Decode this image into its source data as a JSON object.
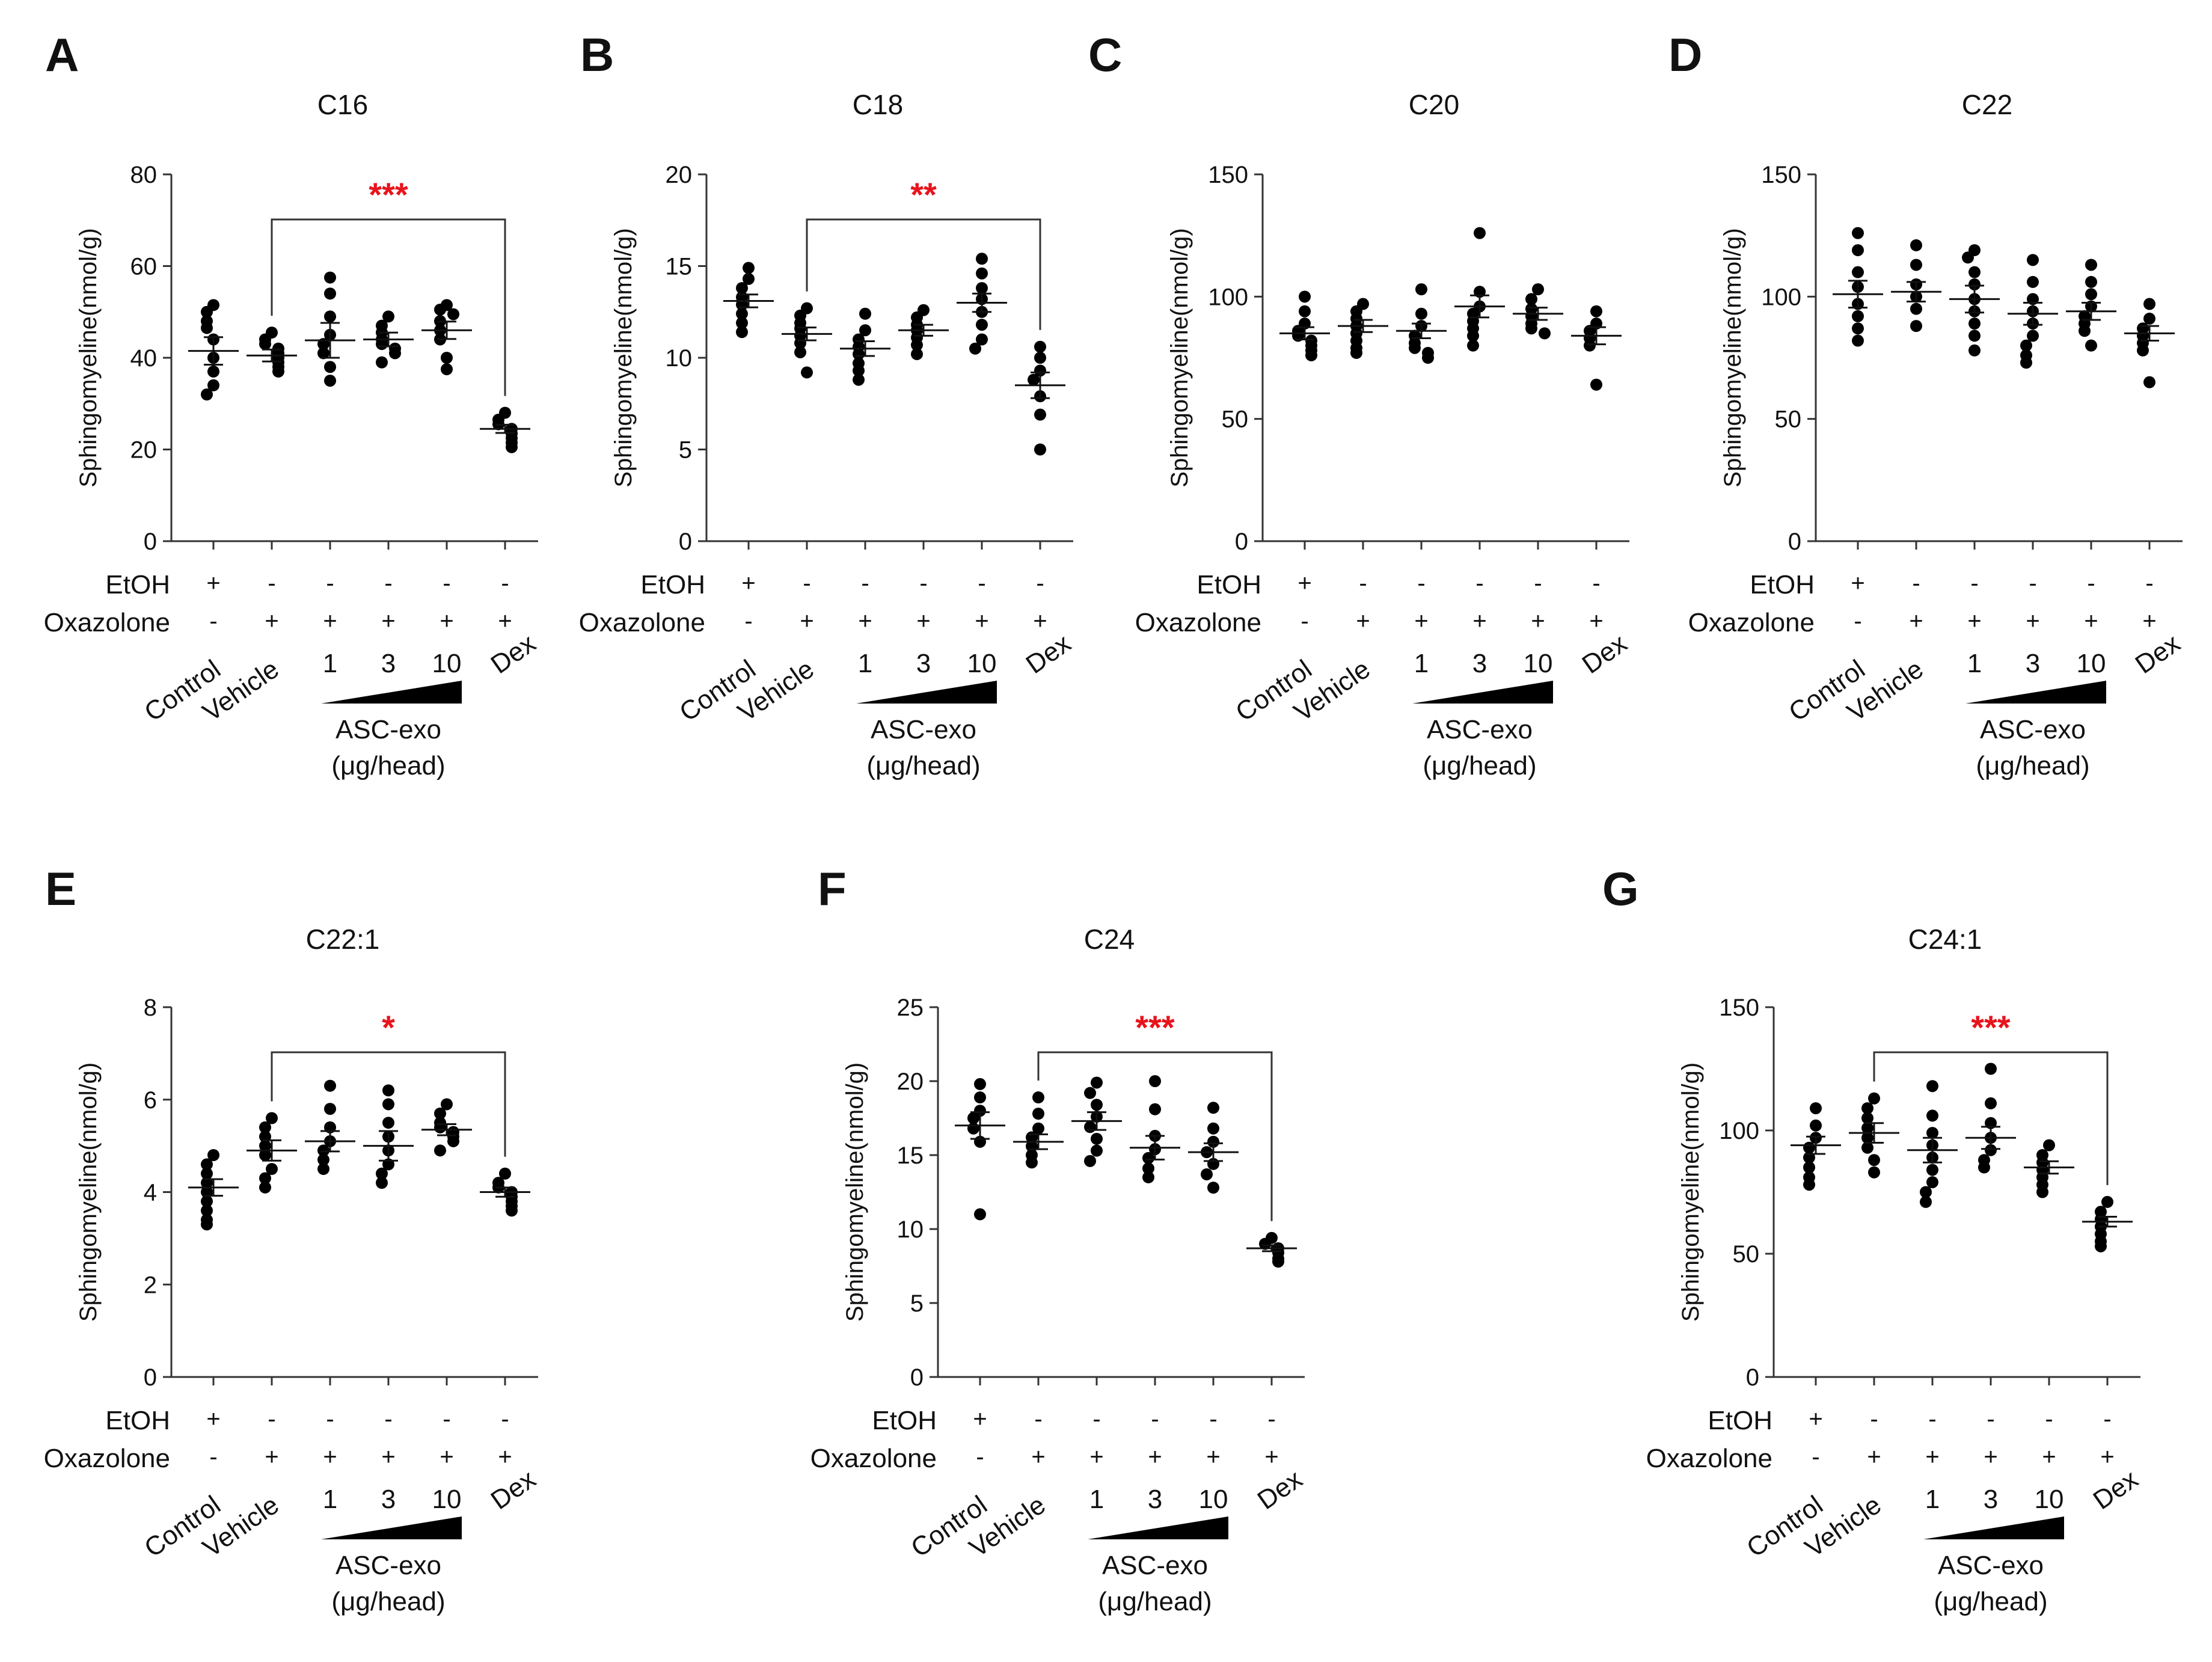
{
  "shared": {
    "ylabel": "Sphingomyeline(nmol/g)",
    "row_labels": [
      "EtOH",
      "Oxazolone"
    ],
    "etoh_signs": [
      "+",
      "-",
      "-",
      "-",
      "-",
      "-"
    ],
    "oxa_signs": [
      "-",
      "+",
      "+",
      "+",
      "+",
      "+"
    ],
    "groups": [
      "Control",
      "Vehicle",
      "1",
      "3",
      "10",
      "Dex"
    ],
    "exo_label_line1": "ASC-exo",
    "exo_label_line2": "(μg/head)"
  },
  "chart_data": [
    {
      "type": "scatter",
      "panel": "A",
      "title": "C16",
      "ylim": [
        0,
        80
      ],
      "yticks": [
        0,
        20,
        40,
        60,
        80
      ],
      "categories": [
        "Control",
        "Vehicle",
        "1",
        "3",
        "10",
        "Dex"
      ],
      "means": [
        41.5,
        40.5,
        43.8,
        44.0,
        46.0,
        24.5
      ],
      "sems": [
        3.0,
        1.3,
        3.8,
        1.5,
        1.9,
        0.9
      ],
      "points": [
        [
          51.5,
          50,
          48,
          46.5,
          44,
          40,
          37,
          34,
          32
        ],
        [
          45.5,
          44,
          43,
          42,
          41,
          40,
          39,
          38,
          37
        ],
        [
          57.5,
          54,
          49,
          45,
          43,
          41,
          38,
          35
        ],
        [
          49,
          47,
          45.5,
          44,
          43,
          42,
          41,
          39
        ],
        [
          51.5,
          50.5,
          49.5,
          48,
          46,
          44,
          40,
          37.5
        ],
        [
          28,
          26.5,
          25.5,
          24.5,
          23.5,
          22.5,
          21.5,
          20.5
        ]
      ],
      "significance": "***",
      "bracket": [
        "Vehicle",
        "Dex"
      ]
    },
    {
      "type": "scatter",
      "panel": "B",
      "title": "C18",
      "ylim": [
        0,
        20
      ],
      "yticks": [
        0,
        5,
        10,
        15,
        20
      ],
      "categories": [
        "Control",
        "Vehicle",
        "1",
        "3",
        "10",
        "Dex"
      ],
      "means": [
        13.1,
        11.3,
        10.5,
        11.5,
        13.0,
        8.5
      ],
      "sems": [
        0.35,
        0.35,
        0.4,
        0.3,
        0.5,
        0.7
      ],
      "points": [
        [
          14.9,
          14.3,
          13.8,
          13.3,
          12.9,
          12.4,
          11.9,
          11.4
        ],
        [
          12.7,
          12.3,
          11.9,
          11.6,
          11.2,
          10.8,
          10.3,
          9.2
        ],
        [
          12.4,
          11.5,
          11.0,
          10.6,
          10.2,
          9.7,
          9.3,
          8.8
        ],
        [
          12.6,
          12.2,
          11.8,
          11.5,
          11.1,
          10.7,
          10.2
        ],
        [
          15.4,
          14.6,
          13.8,
          13.2,
          12.5,
          11.8,
          11.0,
          10.5
        ],
        [
          10.6,
          10.0,
          9.3,
          8.8,
          7.9,
          6.9,
          5.0
        ]
      ],
      "significance": "**",
      "bracket": [
        "Vehicle",
        "Dex"
      ]
    },
    {
      "type": "scatter",
      "panel": "C",
      "title": "C20",
      "ylim": [
        0,
        150
      ],
      "yticks": [
        0,
        50,
        100,
        150
      ],
      "categories": [
        "Control",
        "Vehicle",
        "1",
        "3",
        "10",
        "Dex"
      ],
      "means": [
        85,
        88,
        86,
        96,
        93,
        84
      ],
      "sems": [
        2.5,
        2.5,
        3.0,
        4.5,
        2.5,
        3.5
      ],
      "points": [
        [
          100,
          94,
          89,
          86,
          84,
          82,
          80,
          78,
          76
        ],
        [
          97,
          94,
          91,
          88,
          85,
          82,
          79,
          77
        ],
        [
          103,
          93,
          88,
          84,
          81,
          79,
          77,
          75
        ],
        [
          126,
          102,
          96,
          93,
          90,
          87,
          84,
          80
        ],
        [
          103,
          99,
          95,
          92,
          89,
          87,
          85
        ],
        [
          94,
          89,
          86,
          83,
          80,
          64
        ]
      ],
      "significance": "",
      "bracket": []
    },
    {
      "type": "scatter",
      "panel": "D",
      "title": "C22",
      "ylim": [
        0,
        150
      ],
      "yticks": [
        0,
        50,
        100,
        150
      ],
      "categories": [
        "Control",
        "Vehicle",
        "1",
        "3",
        "10",
        "Dex"
      ],
      "means": [
        101,
        102,
        99,
        93,
        94,
        85
      ],
      "sems": [
        5.5,
        4.0,
        5.5,
        4.5,
        3.5,
        3.0
      ],
      "points": [
        [
          126,
          119,
          110,
          104,
          97,
          92,
          87,
          82
        ],
        [
          121,
          113,
          105,
          100,
          95,
          88
        ],
        [
          119,
          116,
          110,
          105,
          99,
          94,
          89,
          84,
          78
        ],
        [
          115,
          106,
          99,
          94,
          89,
          84,
          80,
          76,
          73
        ],
        [
          113,
          106,
          101,
          96,
          92,
          89,
          86,
          80
        ],
        [
          97,
          91,
          87,
          84,
          81,
          78,
          65
        ]
      ],
      "significance": "",
      "bracket": []
    },
    {
      "type": "scatter",
      "panel": "E",
      "title": "C22:1",
      "ylim": [
        0,
        8
      ],
      "yticks": [
        0,
        2,
        4,
        6,
        8
      ],
      "categories": [
        "Control",
        "Vehicle",
        "1",
        "3",
        "10",
        "Dex"
      ],
      "means": [
        4.1,
        4.9,
        5.1,
        5.0,
        5.35,
        4.0
      ],
      "sems": [
        0.18,
        0.22,
        0.22,
        0.32,
        0.12,
        0.1
      ],
      "points": [
        [
          4.8,
          4.6,
          4.4,
          4.2,
          4.0,
          3.8,
          3.6,
          3.4,
          3.3
        ],
        [
          5.6,
          5.4,
          5.2,
          5.0,
          4.8,
          4.5,
          4.3,
          4.1
        ],
        [
          6.3,
          5.8,
          5.4,
          5.1,
          4.9,
          4.7,
          4.5
        ],
        [
          6.2,
          5.9,
          5.5,
          5.2,
          4.9,
          4.6,
          4.4,
          4.2
        ],
        [
          5.9,
          5.7,
          5.5,
          5.4,
          5.3,
          5.2,
          5.1,
          4.9
        ],
        [
          4.4,
          4.2,
          4.1,
          4.0,
          3.9,
          3.8,
          3.7,
          3.6
        ]
      ],
      "significance": "*",
      "bracket": [
        "Vehicle",
        "Dex"
      ]
    },
    {
      "type": "scatter",
      "panel": "F",
      "title": "C24",
      "ylim": [
        0,
        25
      ],
      "yticks": [
        0,
        5,
        10,
        15,
        20,
        25
      ],
      "categories": [
        "Control",
        "Vehicle",
        "1",
        "3",
        "10",
        "Dex"
      ],
      "means": [
        17.0,
        15.9,
        17.3,
        15.5,
        15.2,
        8.7
      ],
      "sems": [
        0.9,
        0.5,
        0.6,
        0.8,
        0.6,
        0.2
      ],
      "points": [
        [
          19.8,
          18.9,
          18.0,
          17.5,
          16.8,
          15.9,
          11.0
        ],
        [
          18.9,
          17.8,
          16.8,
          16.2,
          15.6,
          15.0,
          14.5
        ],
        [
          19.9,
          19.2,
          18.4,
          17.6,
          16.9,
          16.1,
          15.3,
          14.6
        ],
        [
          20.0,
          18.1,
          16.3,
          15.4,
          14.8,
          14.1,
          13.5
        ],
        [
          18.2,
          16.8,
          15.9,
          15.2,
          14.4,
          13.7,
          12.8
        ],
        [
          9.4,
          9.0,
          8.7,
          8.4,
          8.0,
          7.8
        ]
      ],
      "significance": "***",
      "bracket": [
        "Vehicle",
        "Dex"
      ]
    },
    {
      "type": "scatter",
      "panel": "G",
      "title": "C24:1",
      "ylim": [
        0,
        150
      ],
      "yticks": [
        0,
        50,
        100,
        150
      ],
      "categories": [
        "Control",
        "Vehicle",
        "1",
        "3",
        "10",
        "Dex"
      ],
      "means": [
        94,
        99,
        92,
        97,
        85,
        63
      ],
      "sems": [
        3.5,
        4.0,
        5.0,
        4.5,
        2.5,
        2.0
      ],
      "points": [
        [
          109,
          102,
          97,
          93,
          89,
          85,
          81,
          78
        ],
        [
          113,
          109,
          105,
          101,
          97,
          93,
          88,
          83
        ],
        [
          118,
          106,
          99,
          94,
          89,
          84,
          79,
          75,
          71
        ],
        [
          125,
          111,
          103,
          97,
          92,
          88,
          85
        ],
        [
          94,
          90,
          87,
          84,
          81,
          78,
          75
        ],
        [
          71,
          67,
          64,
          61,
          58,
          55,
          53
        ]
      ],
      "significance": "***",
      "bracket": [
        "Vehicle",
        "Dex"
      ]
    }
  ]
}
